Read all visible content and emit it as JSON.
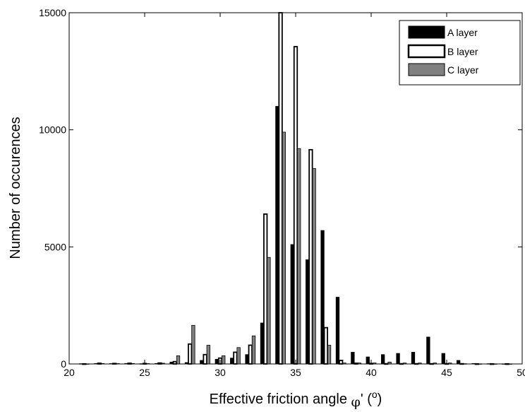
{
  "chart_data": {
    "type": "bar",
    "xlabel": "Effective friction angle",
    "xlabel_symbol": "φ",
    "xlabel_unit_open": "' (",
    "xlabel_unit_sup": "o",
    "xlabel_unit_close": ")",
    "ylabel": "Number of occurences",
    "xlim": [
      20,
      50
    ],
    "ylim": [
      0,
      15000
    ],
    "xticks": [
      "20",
      "25",
      "30",
      "35",
      "40",
      "45",
      "50"
    ],
    "yticks": [
      "0",
      "5000",
      "10000",
      "15000"
    ],
    "grid": false,
    "legend_position": "top-right",
    "x": [
      21,
      22,
      23,
      24,
      25,
      26,
      27,
      28,
      29,
      30,
      31,
      32,
      33,
      34,
      35,
      36,
      37,
      38,
      39,
      40,
      41,
      42,
      43,
      44,
      45,
      46,
      47,
      48,
      49
    ],
    "series": [
      {
        "name": "A layer",
        "fill": "#000000",
        "stroke": "#000000",
        "values": [
          10,
          20,
          15,
          20,
          10,
          20,
          80,
          60,
          150,
          200,
          250,
          400,
          1750,
          11000,
          5100,
          4450,
          5700,
          2850,
          500,
          300,
          400,
          450,
          500,
          1150,
          450,
          150,
          20,
          10,
          5
        ]
      },
      {
        "name": "B layer",
        "fill": "#ffffff",
        "stroke": "#000000",
        "values": [
          5,
          30,
          20,
          30,
          20,
          40,
          100,
          850,
          400,
          250,
          500,
          800,
          6400,
          15000,
          13550,
          9150,
          1550,
          150,
          30,
          20,
          10,
          10,
          10,
          10,
          10,
          10,
          5,
          5,
          5
        ]
      },
      {
        "name": "C layer",
        "fill": "#808080",
        "stroke": "#000000",
        "values": [
          5,
          20,
          15,
          20,
          15,
          30,
          350,
          1650,
          800,
          350,
          700,
          1200,
          4550,
          9900,
          9200,
          8350,
          800,
          40,
          40,
          40,
          80,
          40,
          40,
          40,
          40,
          10,
          5,
          5,
          5
        ]
      }
    ]
  }
}
